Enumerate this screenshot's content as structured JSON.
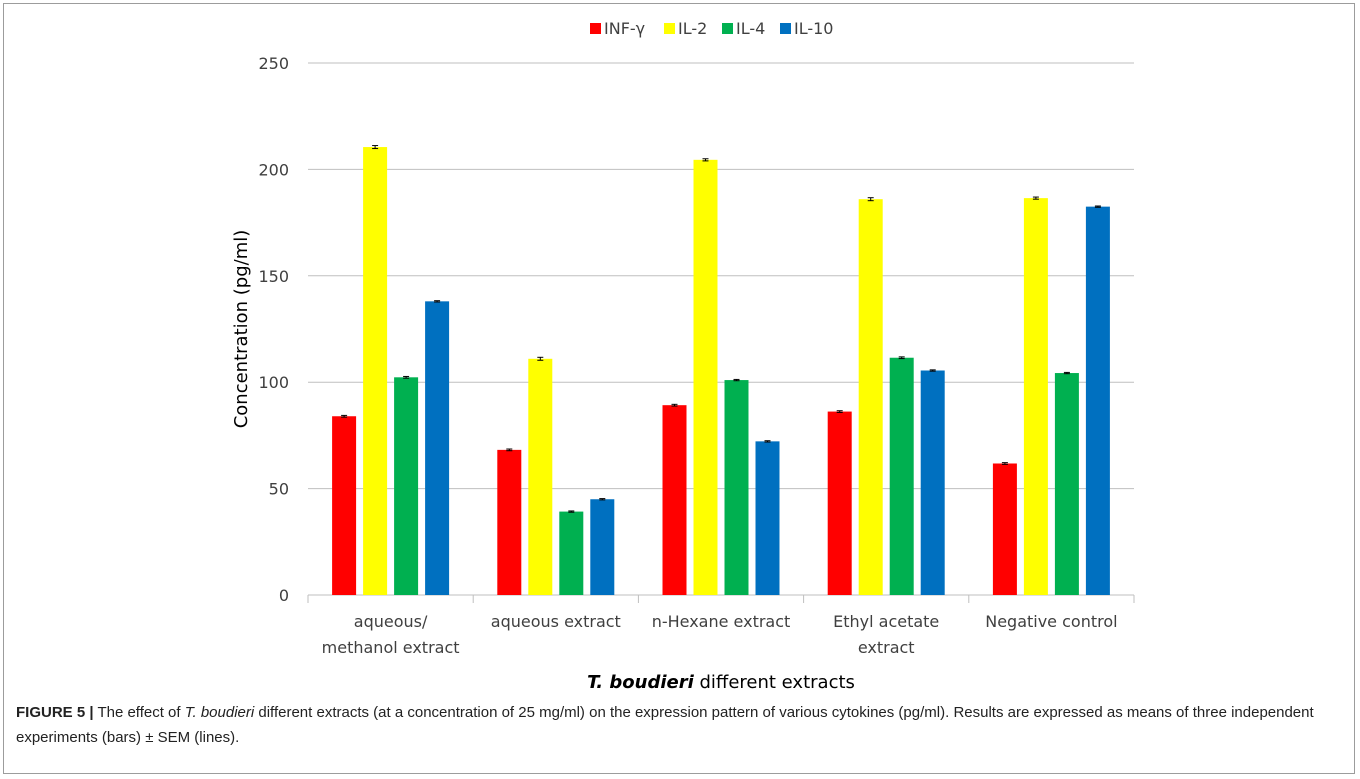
{
  "chart_data": {
    "type": "bar",
    "title": "",
    "xlabel": {
      "italic_bold": "T. boudieri",
      "rest": " different extracts"
    },
    "ylabel": "Concentration (pg/ml)",
    "ylim": [
      0,
      250
    ],
    "yticks": [
      0,
      50,
      100,
      150,
      200,
      250
    ],
    "grid": true,
    "legend_position": "top-center",
    "categories": [
      [
        "aqueous/",
        "methanol extract"
      ],
      [
        "aqueous extract"
      ],
      [
        "n-Hexane extract"
      ],
      [
        "Ethyl acetate",
        "extract"
      ],
      [
        "Negative control"
      ]
    ],
    "series": [
      {
        "name": "INF-γ",
        "color": "#ff0000",
        "values": [
          84,
          68.2,
          89.2,
          86.2,
          61.8
        ],
        "errors": [
          0.4,
          0.4,
          0.4,
          0.4,
          0.4
        ]
      },
      {
        "name": "IL-2",
        "color": "#ffff00",
        "values": [
          210.5,
          111,
          204.5,
          186,
          186.5
        ],
        "errors": [
          0.7,
          0.7,
          0.5,
          0.7,
          0.5
        ]
      },
      {
        "name": "IL-4",
        "color": "#00b050",
        "values": [
          102.3,
          39.2,
          101,
          111.5,
          104.3
        ],
        "errors": [
          0.4,
          0.3,
          0.3,
          0.4,
          0.3
        ]
      },
      {
        "name": "IL-10",
        "color": "#0070c0",
        "values": [
          138,
          45,
          72.2,
          105.5,
          182.5
        ],
        "errors": [
          0.3,
          0.3,
          0.3,
          0.3,
          0.3
        ]
      }
    ]
  },
  "caption": {
    "label": "FIGURE 5 |",
    "text_before": " The effect of ",
    "species": "T. boudieri",
    "text_after": " different extracts (at a concentration of 25 mg/ml) on the expression pattern of various cytokines (pg/ml). Results are expressed as means of three independent experiments (bars) ± SEM (lines)."
  }
}
